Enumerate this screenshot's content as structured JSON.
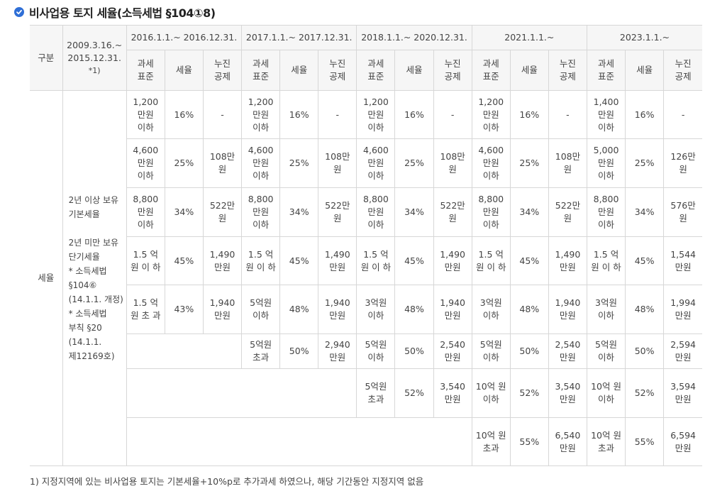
{
  "title": "비사업용 토지 세율(소득세법 §104①8)",
  "header": {
    "gubun": "구분",
    "early_period": "2009.3.16.~ 2015.12.31.",
    "early_note": "*1)",
    "periods": [
      "2016.1.1.~ 2016.12.31.",
      "2017.1.1.~ 2017.12.31.",
      "2018.1.1.~ 2020.12.31.",
      "2021.1.1.~",
      "2023.1.1.~"
    ],
    "subcols": [
      "과세 표준",
      "세율",
      "누진 공제"
    ]
  },
  "row_label": "세율",
  "note_lines": [
    "2년 이상 보유 기본세율",
    "",
    "2년 미만 보유 단기세율",
    "* 소득세법 §104⑥",
    "(14.1.1. 개정)",
    "* 소득세법 부칙 §20",
    "(14.1.1. 제12169호)"
  ],
  "rows": [
    [
      [
        "1,200 만원 이하",
        "16%",
        "-"
      ],
      [
        "1,200 만원 이하",
        "16%",
        "-"
      ],
      [
        "1,200 만원 이하",
        "16%",
        "-"
      ],
      [
        "1,200 만원 이하",
        "16%",
        "-"
      ],
      [
        "1,400 만원 이하",
        "16%",
        "-"
      ]
    ],
    [
      [
        "4,600 만원 이하",
        "25%",
        "108만 원"
      ],
      [
        "4,600 만원 이하",
        "25%",
        "108만 원"
      ],
      [
        "4,600 만원 이하",
        "25%",
        "108만 원"
      ],
      [
        "4,600 만원 이하",
        "25%",
        "108만 원"
      ],
      [
        "5,000 만원 이하",
        "25%",
        "126만 원"
      ]
    ],
    [
      [
        "8,800 만원 이하",
        "34%",
        "522만 원"
      ],
      [
        "8,800 만원 이하",
        "34%",
        "522만 원"
      ],
      [
        "8,800 만원 이하",
        "34%",
        "522만 원"
      ],
      [
        "8,800 만원 이하",
        "34%",
        "522만 원"
      ],
      [
        "8,800 만원 이하",
        "34%",
        "576만 원"
      ]
    ],
    [
      [
        "1.5 억 원 이 하",
        "45%",
        "1,490 만원"
      ],
      [
        "1.5 억 원 이 하",
        "45%",
        "1,490 만원"
      ],
      [
        "1.5 억 원 이 하",
        "45%",
        "1,490 만원"
      ],
      [
        "1.5 억 원 이 하",
        "45%",
        "1,490 만원"
      ],
      [
        "1.5 억 원 이 하",
        "45%",
        "1,544 만원"
      ]
    ],
    [
      [
        "1.5 억 원 초 과",
        "43%",
        "1,940 만원"
      ],
      [
        "5억원 이하",
        "48%",
        "1,940 만원"
      ],
      [
        "3억원 이하",
        "48%",
        "1,940 만원"
      ],
      [
        "3억원 이하",
        "48%",
        "1,940 만원"
      ],
      [
        "3억원 이하",
        "48%",
        "1,994 만원"
      ]
    ],
    [
      [
        "5억원 초과",
        "50%",
        "2,940 만원"
      ],
      [
        "5억원 이하",
        "50%",
        "2,540 만원"
      ],
      [
        "5억원 이하",
        "50%",
        "2,540 만원"
      ],
      [
        "5억원 이하",
        "50%",
        "2,594 만원"
      ]
    ],
    [
      [
        "5억원 초과",
        "52%",
        "3,540 만원"
      ],
      [
        "10억 원 이하",
        "52%",
        "3,540 만원"
      ],
      [
        "10억 원 이하",
        "52%",
        "3,594 만원"
      ]
    ],
    [
      [
        "10억 원 초과",
        "55%",
        "6,540 만원"
      ],
      [
        "10억 원 초과",
        "55%",
        "6,594 만원"
      ]
    ]
  ],
  "footnote": "1) 지정지역에 있는 비사업용 토지는 기본세율+10%p로 추가과세 하였으나, 해당 기간동안 지정지역 없음",
  "colors": {
    "accent": "#2f6fd6",
    "header_bg": "#f6f6f6",
    "border": "#d7d7d7"
  }
}
